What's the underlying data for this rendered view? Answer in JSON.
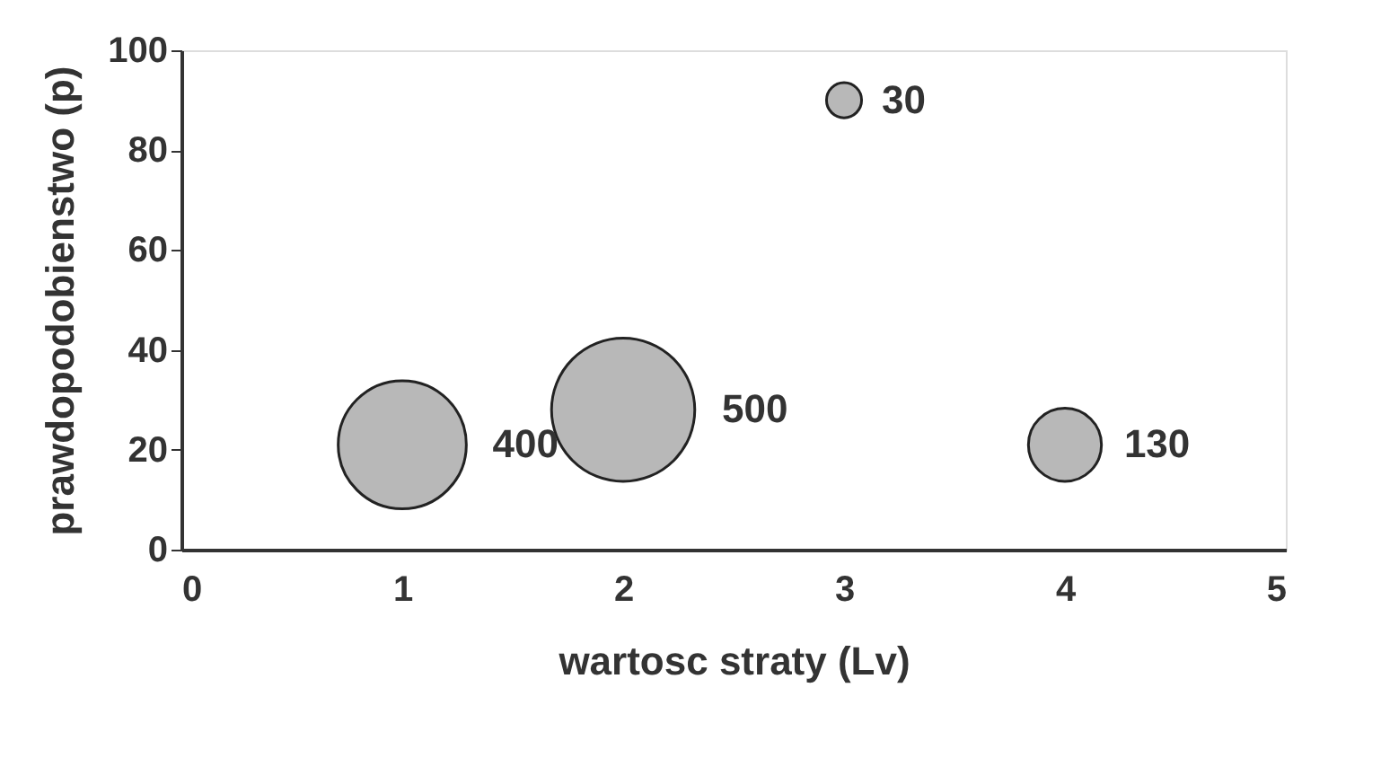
{
  "chart_data": {
    "type": "bubble",
    "xlabel": "wartosc straty (Lv)",
    "ylabel": "prawdopodobienstwo (p)",
    "x": [
      1,
      2,
      3,
      4
    ],
    "series": [
      {
        "color": "#b8b8b8",
        "values": [
          21,
          28,
          90,
          21
        ],
        "sizes": [
          400,
          500,
          30,
          130
        ],
        "value_labels": [
          "400",
          "500",
          "30",
          "130"
        ]
      }
    ],
    "xlim": [
      0,
      5
    ],
    "xticks": [
      0,
      1,
      2,
      3,
      4,
      5
    ],
    "ylim": [
      0,
      100
    ],
    "yticks": [
      0,
      20,
      40,
      60,
      80,
      100
    ],
    "grid": false
  }
}
